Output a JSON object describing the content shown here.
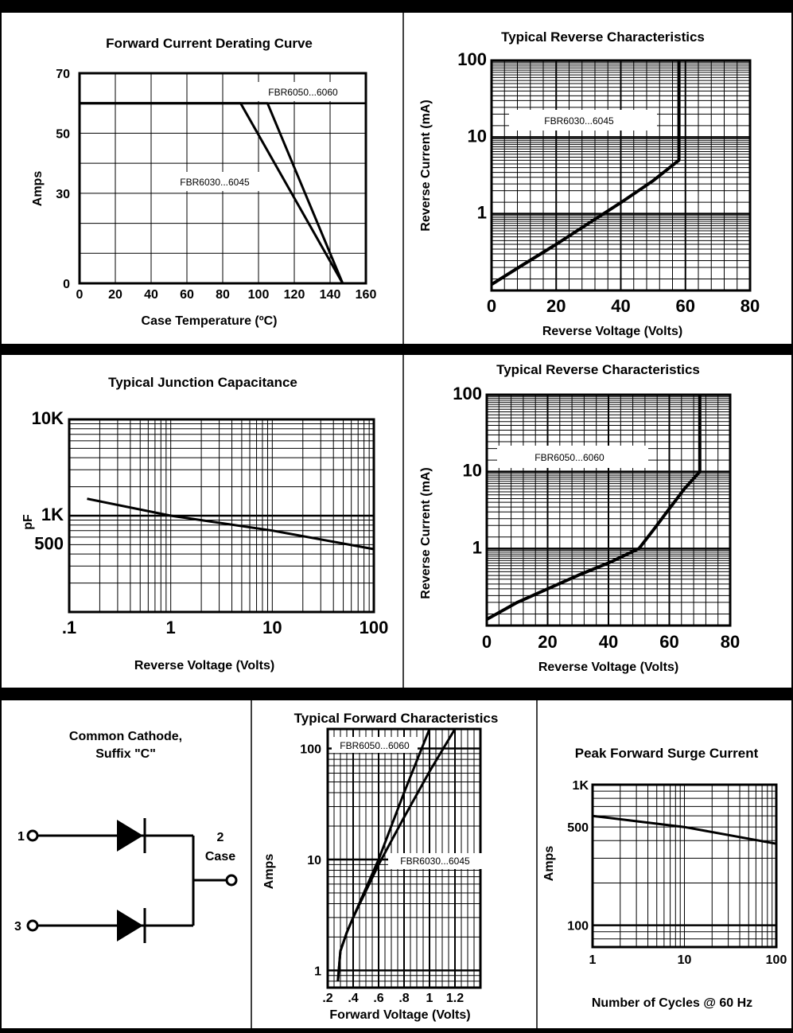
{
  "chart_data": [
    {
      "type": "line",
      "title": "Forward Current Derating Curve",
      "xlabel": "Case Temperature (ºC)",
      "ylabel": "Amps",
      "xlim": [
        0,
        160
      ],
      "ylim": [
        0,
        70
      ],
      "x_ticks": [
        "0",
        "20",
        "40",
        "60",
        "80",
        "100",
        "120",
        "140",
        "160"
      ],
      "y_ticks": [
        "0",
        "30",
        "50",
        "70"
      ],
      "series": [
        {
          "name": "FBR6050...6060",
          "x": [
            0,
            90,
            105,
            147
          ],
          "y": [
            60,
            60,
            60,
            0
          ]
        },
        {
          "name": "FBR6030...6045",
          "x": [
            0,
            90,
            147
          ],
          "y": [
            60,
            60,
            0
          ]
        }
      ],
      "grid": true
    },
    {
      "type": "line",
      "title": "Typical Reverse Characteristics",
      "xlabel": "Reverse Voltage (Volts)",
      "ylabel": "Reverse Current (mA)",
      "xlim": [
        0,
        80
      ],
      "ylim": [
        0.1,
        100
      ],
      "log_y": true,
      "x_ticks": [
        "0",
        "20",
        "40",
        "60",
        "80"
      ],
      "y_ticks": [
        "1",
        "10",
        "100"
      ],
      "series": [
        {
          "name": "FBR6030...6045",
          "x": [
            0,
            10,
            20,
            30,
            40,
            50,
            58,
            58
          ],
          "y": [
            0.12,
            0.22,
            0.4,
            0.75,
            1.4,
            2.7,
            5,
            100
          ]
        }
      ],
      "grid": true
    },
    {
      "type": "line",
      "title": "Typical Junction Capacitance",
      "xlabel": "Reverse Voltage (Volts)",
      "ylabel": "pF",
      "log_x": true,
      "log_y": true,
      "xlim": [
        0.1,
        100
      ],
      "ylim": [
        100,
        10000
      ],
      "x_ticks": [
        ".1",
        "1",
        "10",
        "100"
      ],
      "y_ticks": [
        "500",
        "1K",
        "10K"
      ],
      "series": [
        {
          "x": [
            0.15,
            1,
            10,
            100
          ],
          "y": [
            1500,
            1000,
            700,
            450
          ]
        }
      ],
      "grid": true
    },
    {
      "type": "line",
      "title": "Typical Reverse Characteristics",
      "xlabel": "Reverse Voltage (Volts)",
      "ylabel": "Reverse Current (mA)",
      "xlim": [
        0,
        80
      ],
      "ylim": [
        0.1,
        100
      ],
      "log_y": true,
      "x_ticks": [
        "0",
        "20",
        "40",
        "60",
        "80"
      ],
      "y_ticks": [
        "1",
        "10",
        "100"
      ],
      "series": [
        {
          "name": "FBR6050...6060",
          "x": [
            0,
            10,
            20,
            30,
            40,
            50,
            55,
            60,
            65,
            70,
            70
          ],
          "y": [
            0.12,
            0.2,
            0.3,
            0.45,
            0.65,
            1.0,
            1.8,
            3.3,
            6,
            10,
            100
          ]
        }
      ],
      "grid": true
    },
    {
      "type": "line",
      "title": "Typical Forward Characteristics",
      "xlabel": "Forward Voltage (Volts)",
      "ylabel": "Amps",
      "xlim": [
        0.2,
        1.4
      ],
      "ylim": [
        0.7,
        150
      ],
      "log_y": true,
      "x_ticks": [
        ".2",
        ".4",
        ".6",
        ".8",
        "1",
        "1.2"
      ],
      "y_ticks": [
        "1",
        "10",
        "100"
      ],
      "series": [
        {
          "name": "FBR6050...6060",
          "x": [
            0.28,
            0.3,
            0.35,
            0.4,
            0.5,
            0.6,
            0.8,
            1.0
          ],
          "y": [
            0.8,
            1.5,
            2.2,
            3,
            5.5,
            10,
            40,
            150
          ]
        },
        {
          "name": "FBR6030...6045",
          "x": [
            0.28,
            0.3,
            0.35,
            0.4,
            0.5,
            0.6,
            0.8,
            1.0,
            1.2
          ],
          "y": [
            0.8,
            1.5,
            2.2,
            3,
            5.2,
            9,
            24,
            62,
            150
          ]
        }
      ],
      "grid": true
    },
    {
      "type": "line",
      "title": "Peak Forward Surge Current",
      "xlabel": "Number of Cycles @ 60 Hz",
      "ylabel": "Amps",
      "log_x": true,
      "log_y": true,
      "xlim": [
        1,
        100
      ],
      "ylim": [
        70,
        1000
      ],
      "x_ticks": [
        "1",
        "10",
        "100"
      ],
      "y_ticks": [
        "100",
        "500",
        "1K"
      ],
      "series": [
        {
          "x": [
            1,
            10,
            100
          ],
          "y": [
            600,
            500,
            380
          ]
        }
      ],
      "grid": true
    }
  ],
  "circuit": {
    "title": "Common Cathode,",
    "subtitle": "Suffix \"C\"",
    "pin1": "1",
    "pin3": "3",
    "pin2": "2",
    "pin2_label": "Case"
  }
}
